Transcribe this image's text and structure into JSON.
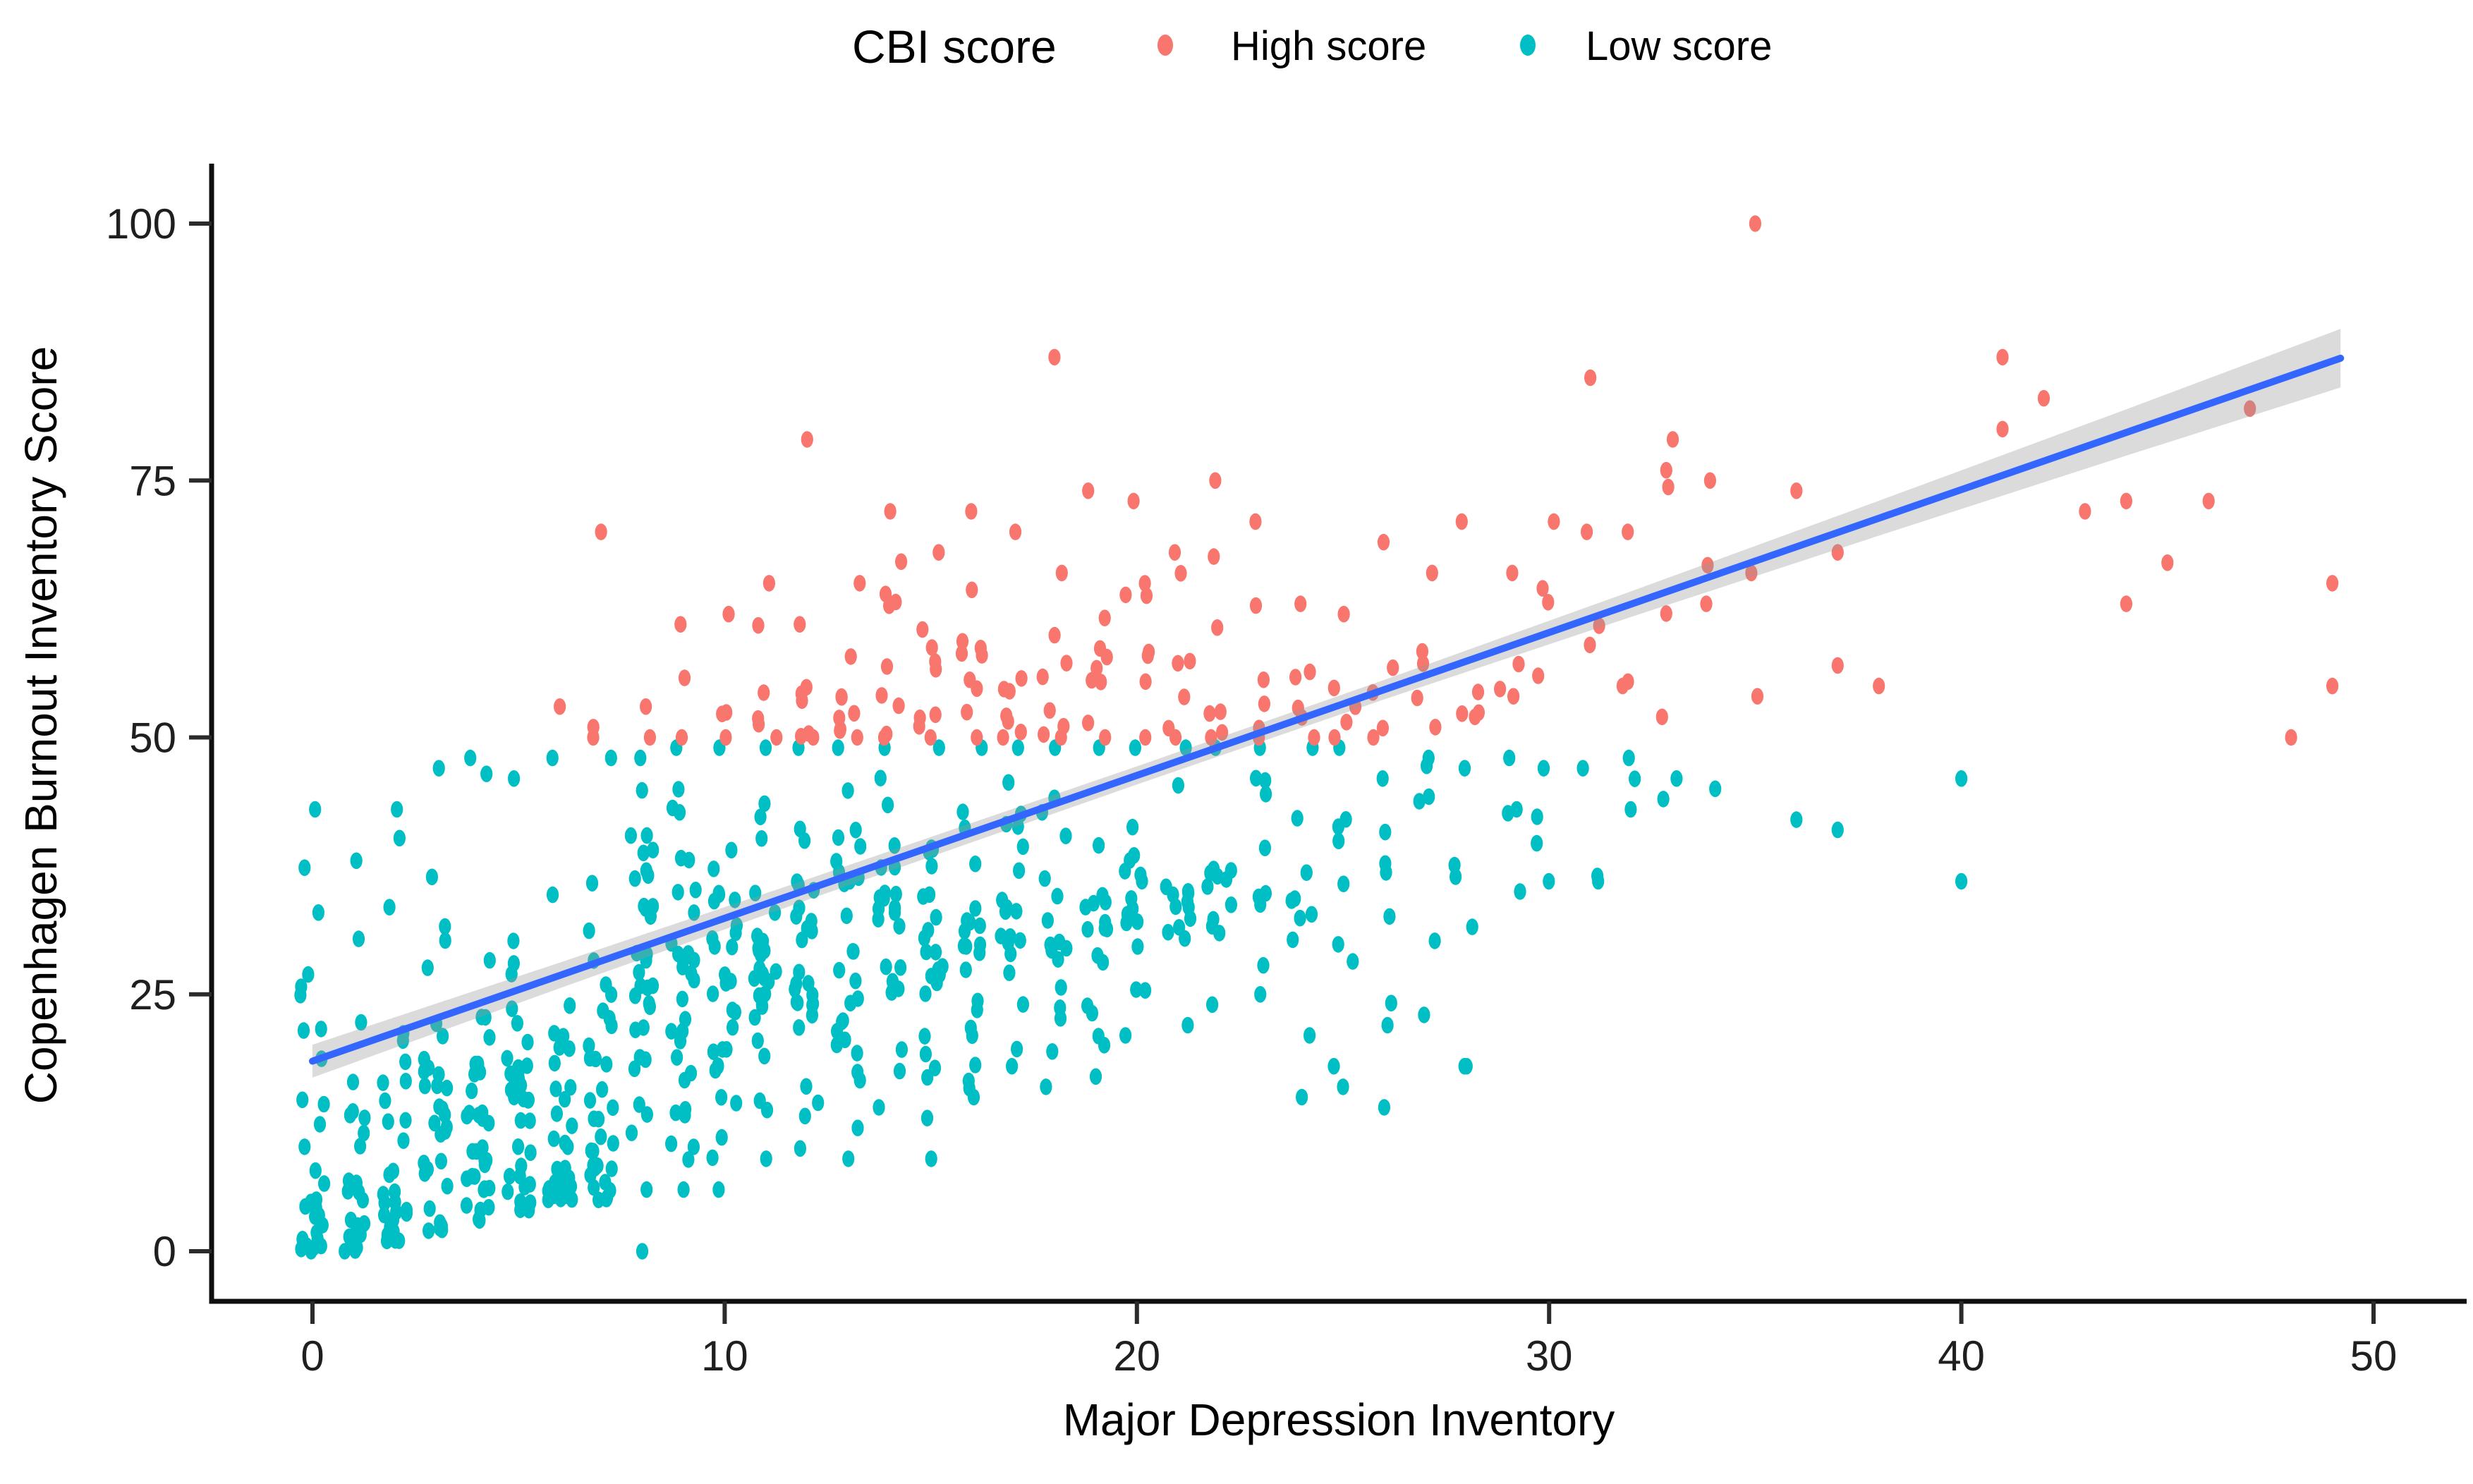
{
  "chart_data": {
    "type": "scatter",
    "title": "",
    "xlabel": "Major Depression Inventory",
    "ylabel": "Copenhagen Burnout Inventory Score",
    "xlim": [
      -2.5,
      52.3
    ],
    "ylim": [
      -4.9,
      107.3
    ],
    "x_ticks": [
      0,
      10,
      20,
      30,
      40,
      50
    ],
    "y_ticks": [
      0,
      25,
      50,
      75,
      100
    ],
    "grid": false,
    "legend_position": "top",
    "legend_title": "CBI score",
    "jitter": {
      "seed": 1337,
      "x_spread": 0.6
    },
    "series": [
      {
        "name": "High score",
        "color": "#F8766D",
        "rule": "CBI score >= 50",
        "strips": [
          [
            7,
            2,
            50,
            51
          ],
          [
            8,
            2,
            50,
            53
          ],
          [
            9,
            3,
            50,
            61
          ],
          [
            10,
            4,
            50,
            62
          ],
          [
            11,
            6,
            50,
            65
          ],
          [
            12,
            7,
            50,
            61
          ],
          [
            13,
            9,
            50,
            65
          ],
          [
            14,
            10,
            50,
            72
          ],
          [
            15,
            9,
            50,
            68
          ],
          [
            16,
            10,
            50,
            72
          ],
          [
            17,
            8,
            50,
            70
          ],
          [
            18,
            8,
            50,
            66
          ],
          [
            19,
            9,
            50,
            74
          ],
          [
            20,
            8,
            50,
            73
          ],
          [
            21,
            7,
            50,
            68
          ],
          [
            22,
            7,
            50,
            75
          ],
          [
            23,
            6,
            50,
            71
          ],
          [
            24,
            6,
            50,
            63
          ],
          [
            25,
            5,
            50,
            62
          ],
          [
            26,
            5,
            50,
            69
          ],
          [
            27,
            5,
            51,
            66
          ],
          [
            28,
            5,
            52,
            71
          ],
          [
            29,
            4,
            54,
            66
          ],
          [
            30,
            4,
            56,
            71
          ],
          [
            31,
            3,
            59,
            70
          ],
          [
            32,
            3,
            55,
            70
          ],
          [
            33,
            4,
            52,
            76
          ],
          [
            34,
            3,
            63,
            75
          ],
          [
            35,
            2,
            54,
            66
          ]
        ],
        "outliers": [
          [
            6,
            53
          ],
          [
            7,
            70
          ],
          [
            12,
            79
          ],
          [
            18,
            87
          ],
          [
            31,
            85
          ],
          [
            33,
            79
          ],
          [
            35,
            100
          ],
          [
            36,
            74
          ],
          [
            37,
            68
          ],
          [
            37,
            57
          ],
          [
            38,
            55
          ],
          [
            41,
            87
          ],
          [
            42,
            83
          ],
          [
            41,
            80
          ],
          [
            43,
            72
          ],
          [
            44,
            73
          ],
          [
            46,
            73
          ],
          [
            45,
            67
          ],
          [
            44,
            63
          ],
          [
            47,
            82
          ],
          [
            48,
            50
          ],
          [
            49,
            55
          ],
          [
            49,
            65
          ]
        ]
      },
      {
        "name": "Low score",
        "color": "#00BFC4",
        "rule": "CBI score < 50",
        "strips": [
          [
            0,
            30,
            0,
            43
          ],
          [
            1,
            26,
            0,
            38
          ],
          [
            2,
            30,
            1,
            43
          ],
          [
            3,
            32,
            2,
            47
          ],
          [
            4,
            34,
            3,
            48
          ],
          [
            5,
            36,
            4,
            46
          ],
          [
            6,
            36,
            5,
            48
          ],
          [
            7,
            34,
            5,
            48
          ],
          [
            8,
            32,
            6,
            48
          ],
          [
            9,
            32,
            6,
            49
          ],
          [
            10,
            30,
            6,
            49
          ],
          [
            11,
            28,
            9,
            49
          ],
          [
            12,
            28,
            10,
            49
          ],
          [
            13,
            26,
            12,
            49
          ],
          [
            14,
            24,
            14,
            49
          ],
          [
            15,
            24,
            9,
            49
          ],
          [
            16,
            22,
            15,
            49
          ],
          [
            17,
            20,
            18,
            49
          ],
          [
            18,
            18,
            16,
            49
          ],
          [
            19,
            17,
            17,
            49
          ],
          [
            20,
            16,
            21,
            49
          ],
          [
            21,
            14,
            22,
            49
          ],
          [
            22,
            12,
            24,
            49
          ],
          [
            23,
            10,
            25,
            49
          ],
          [
            24,
            9,
            21,
            49
          ],
          [
            25,
            8,
            18,
            49
          ],
          [
            26,
            7,
            22,
            46
          ],
          [
            27,
            6,
            23,
            48
          ],
          [
            28,
            5,
            18,
            47
          ],
          [
            29,
            4,
            35,
            48
          ],
          [
            30,
            4,
            36,
            47
          ],
          [
            31,
            3,
            36,
            47
          ],
          [
            32,
            3,
            43,
            48
          ],
          [
            33,
            2,
            44,
            46
          ],
          [
            34,
            1,
            45,
            45
          ]
        ],
        "outliers": [
          [
            8,
            0
          ],
          [
            13,
            9
          ],
          [
            24,
            15
          ],
          [
            25,
            16
          ],
          [
            26,
            14
          ],
          [
            28,
            18
          ],
          [
            36,
            42
          ],
          [
            37,
            41
          ],
          [
            40,
            46
          ],
          [
            40,
            36
          ]
        ]
      }
    ],
    "trend": {
      "type": "linear",
      "color": "#3366FF",
      "x_start": 0,
      "y_start": 18.5,
      "x_end": 49.2,
      "y_end": 86.9,
      "ribbon_fill": "#999999",
      "ribbon_opacity": 0.35,
      "ribbon_halfwidth": [
        [
          0,
          1.6
        ],
        [
          6,
          1.25
        ],
        [
          12,
          1.0
        ],
        [
          20,
          0.88
        ],
        [
          26,
          0.95
        ],
        [
          32,
          1.25
        ],
        [
          38,
          1.7
        ],
        [
          44,
          2.25
        ],
        [
          49.2,
          2.85
        ]
      ]
    }
  }
}
